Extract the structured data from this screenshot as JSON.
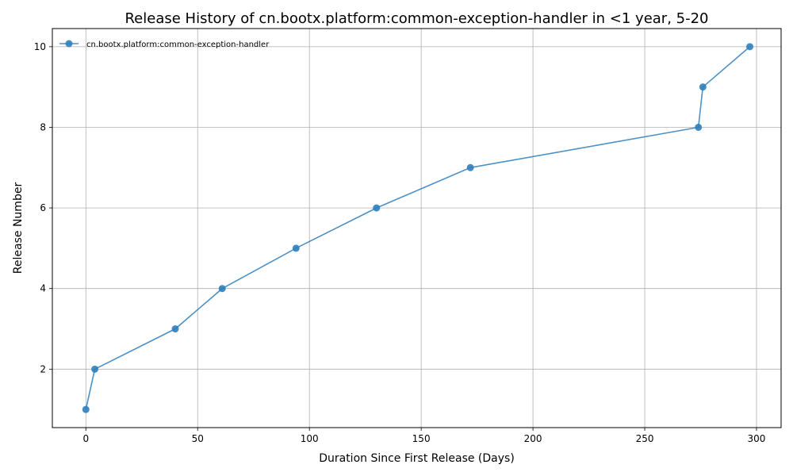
{
  "chart_data": {
    "type": "line",
    "title": "Release History of cn.bootx.platform:common-exception-handler in <1 year, 5-20",
    "xlabel": "Duration Since First Release (Days)",
    "ylabel": "Release Number",
    "xlim": [
      -15,
      311
    ],
    "ylim": [
      0.55,
      10.45
    ],
    "xticks": [
      0,
      50,
      100,
      150,
      200,
      250,
      300
    ],
    "yticks": [
      2,
      4,
      6,
      8,
      10
    ],
    "grid": true,
    "legend_position": "top-left",
    "series": [
      {
        "name": "cn.bootx.platform:common-exception-handler",
        "color": "#2e7ebc",
        "marker": "circle",
        "x": [
          0,
          4,
          40,
          61,
          94,
          130,
          172,
          274,
          276,
          297
        ],
        "y": [
          1,
          2,
          3,
          4,
          5,
          6,
          7,
          8,
          9,
          10
        ]
      }
    ]
  }
}
